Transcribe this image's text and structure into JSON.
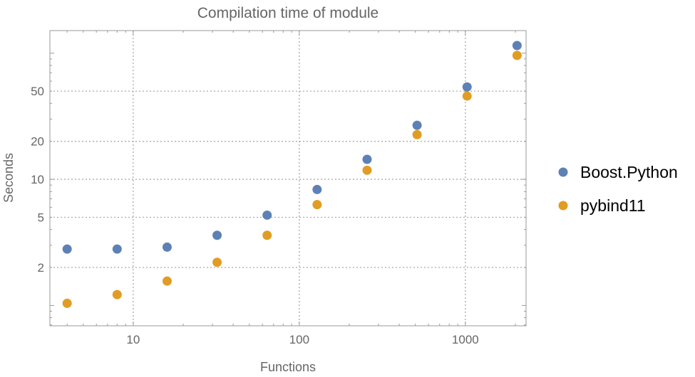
{
  "chart_data": {
    "type": "scatter",
    "title": "Compilation time of module",
    "xlabel": "Functions",
    "ylabel": "Seconds",
    "xscale": "log",
    "yscale": "log",
    "xlim": [
      3.15,
      2320
    ],
    "ylim": [
      0.69,
      151
    ],
    "grid": true,
    "legend_position": "right",
    "x_ticks": [
      10,
      100,
      1000
    ],
    "x_tick_labels": [
      "10",
      "100",
      "1000"
    ],
    "y_ticks": [
      2,
      5,
      10,
      20,
      50
    ],
    "y_tick_labels": [
      "2",
      "5",
      "10",
      "20",
      "50"
    ],
    "x": [
      4,
      8,
      16,
      32,
      64,
      128,
      256,
      512,
      1024,
      2048
    ],
    "series": [
      {
        "name": "Boost.Python",
        "color": "#5E81B5",
        "values": [
          2.8,
          2.8,
          2.9,
          3.6,
          5.2,
          8.3,
          14.4,
          26.8,
          54,
          115
        ]
      },
      {
        "name": "pybind11",
        "color": "#E19C24",
        "values": [
          1.04,
          1.22,
          1.56,
          2.2,
          3.6,
          6.3,
          11.8,
          22.6,
          45.7,
          96
        ]
      }
    ]
  }
}
